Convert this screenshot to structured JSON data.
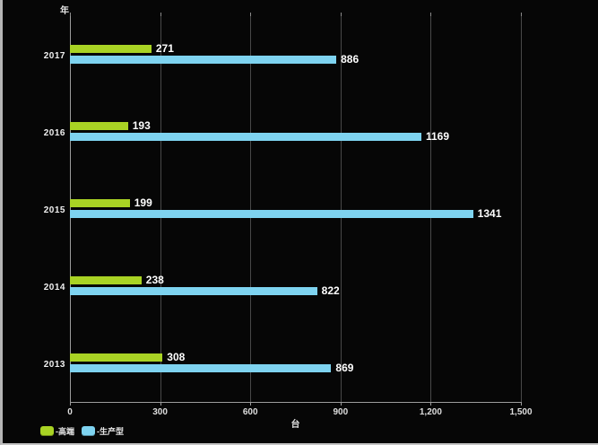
{
  "chart_data": {
    "type": "bar",
    "orientation": "horizontal",
    "title": "",
    "xlabel": "台",
    "ylabel": "年",
    "categories": [
      "2017",
      "2016",
      "2015",
      "2014",
      "2013"
    ],
    "series": [
      {
        "name": "高端",
        "color": "#a9d324",
        "values": [
          271,
          193,
          199,
          238,
          308
        ]
      },
      {
        "name": "生产型",
        "color": "#7ed3f0",
        "values": [
          886,
          1169,
          1341,
          822,
          869
        ]
      }
    ],
    "xlim": [
      0,
      1500
    ],
    "x_ticks": [
      {
        "value": 0,
        "label": "0"
      },
      {
        "value": 300,
        "label": "300"
      },
      {
        "value": 600,
        "label": "600"
      },
      {
        "value": 900,
        "label": "900"
      },
      {
        "value": 1200,
        "label": "1,200"
      },
      {
        "value": 1500,
        "label": "1,500"
      }
    ],
    "grid": "vertical",
    "legend_position": "bottom-left",
    "legend": [
      {
        "label": "-高端",
        "color": "#a9d324"
      },
      {
        "label": "-生产型",
        "color": "#7ed3f0"
      }
    ],
    "background": "#060606"
  }
}
